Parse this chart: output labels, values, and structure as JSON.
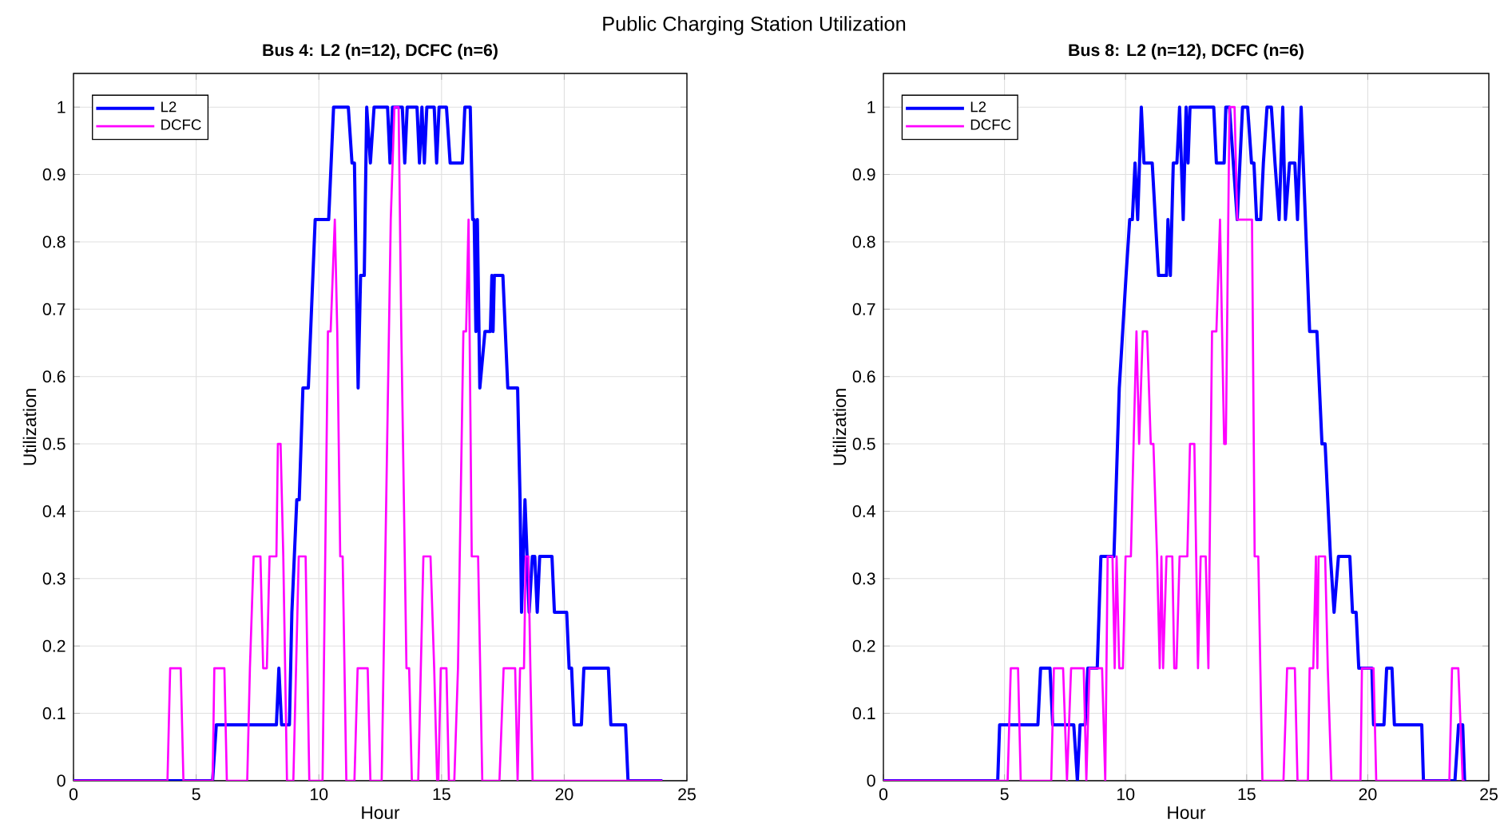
{
  "chart_data": [
    {
      "type": "line",
      "title": "Bus 4: L2 (n=12), DCFC (n=6)",
      "xlabel": "Hour",
      "ylabel": "Utilization",
      "annotations": [
        "Public Charging Station Utilization"
      ],
      "xlim": [
        0,
        25
      ],
      "ylim": [
        0,
        1.05
      ],
      "xticks": [
        0,
        5,
        10,
        15,
        20,
        25
      ],
      "yticks": [
        0,
        0.1,
        0.2,
        0.3,
        0.4,
        0.5,
        0.6,
        0.7,
        0.8,
        0.9,
        1
      ],
      "grid": true,
      "legend": "top left",
      "marker": "none",
      "line_style": "solid",
      "series": [
        {
          "name": "L2",
          "color": "#0000ff",
          "x": [
            0,
            5.67,
            5.82,
            8.27,
            8.37,
            8.48,
            8.8,
            8.9,
            9.0,
            9.1,
            9.2,
            9.35,
            9.57,
            9.85,
            10.4,
            10.6,
            11.2,
            11.35,
            11.45,
            11.6,
            11.7,
            11.85,
            11.95,
            12.1,
            12.25,
            12.3,
            12.8,
            12.9,
            13.0,
            13.4,
            13.5,
            13.6,
            14.0,
            14.1,
            14.2,
            14.3,
            14.4,
            14.7,
            14.8,
            14.9,
            15.2,
            15.35,
            15.85,
            15.95,
            16.17,
            16.27,
            16.33,
            16.4,
            16.46,
            16.56,
            16.77,
            16.99,
            17.05,
            17.1,
            17.15,
            17.2,
            17.5,
            17.7,
            18.1,
            18.2,
            18.26,
            18.4,
            18.57,
            18.7,
            18.8,
            18.9,
            19.0,
            19.5,
            19.6,
            20.1,
            20.2,
            20.3,
            20.4,
            20.7,
            20.8,
            21.8,
            21.9,
            22.5,
            22.6,
            24
          ],
          "values": [
            0,
            0,
            0.083,
            0.083,
            0.167,
            0.083,
            0.083,
            0.25,
            0.333,
            0.417,
            0.417,
            0.583,
            0.583,
            0.833,
            0.833,
            1,
            1,
            0.917,
            0.917,
            0.583,
            0.75,
            0.75,
            1,
            0.917,
            1,
            1,
            1,
            0.917,
            1,
            1,
            0.917,
            1,
            1,
            0.917,
            1,
            0.917,
            1,
            1,
            0.917,
            1,
            1,
            0.917,
            0.917,
            1,
            1,
            0.833,
            0.833,
            0.667,
            0.833,
            0.583,
            0.667,
            0.667,
            0.75,
            0.667,
            0.75,
            0.75,
            0.75,
            0.583,
            0.583,
            0.417,
            0.25,
            0.417,
            0.25,
            0.333,
            0.333,
            0.25,
            0.333,
            0.333,
            0.25,
            0.25,
            0.167,
            0.167,
            0.083,
            0.083,
            0.167,
            0.167,
            0.083,
            0.083,
            0,
            0
          ]
        },
        {
          "name": "DCFC",
          "color": "#ff00ff",
          "x": [
            0,
            3.83,
            3.94,
            4.37,
            4.48,
            5.67,
            5.74,
            6.15,
            6.25,
            7.08,
            7.19,
            7.34,
            7.62,
            7.73,
            7.88,
            7.99,
            8.27,
            8.33,
            8.44,
            8.55,
            8.7,
            8.96,
            9.18,
            9.46,
            9.61,
            10.15,
            10.37,
            10.48,
            10.65,
            10.75,
            10.87,
            10.97,
            11.12,
            11.45,
            11.58,
            11.99,
            12.1,
            12.56,
            12.93,
            13.08,
            13.25,
            13.36,
            13.57,
            13.68,
            13.79,
            14.05,
            14.26,
            14.55,
            14.7,
            14.82,
            14.87,
            14.97,
            15.2,
            15.3,
            15.52,
            15.67,
            15.89,
            16.0,
            16.1,
            16.23,
            16.49,
            16.66,
            17.36,
            17.53,
            18.0,
            18.1,
            18.2,
            18.36,
            18.43,
            18.54,
            18.62,
            18.71,
            24
          ],
          "values": [
            0,
            0,
            0.167,
            0.167,
            0,
            0,
            0.167,
            0.167,
            0,
            0,
            0.167,
            0.333,
            0.333,
            0.167,
            0.167,
            0.333,
            0.333,
            0.5,
            0.5,
            0.333,
            0,
            0,
            0.333,
            0.333,
            0,
            0,
            0.667,
            0.667,
            0.833,
            0.667,
            0.333,
            0.333,
            0,
            0,
            0.167,
            0.167,
            0,
            0,
            0.833,
            1,
            1,
            0.667,
            0.167,
            0.167,
            0,
            0,
            0.333,
            0.333,
            0.167,
            0,
            0,
            0.167,
            0.167,
            0,
            0,
            0.167,
            0.667,
            0.667,
            0.833,
            0.333,
            0.333,
            0,
            0,
            0.167,
            0.167,
            0,
            0.167,
            0.167,
            0.333,
            0.333,
            0.167,
            0,
            0
          ]
        }
      ]
    },
    {
      "type": "line",
      "title": "Bus 8: L2 (n=12), DCFC (n=6)",
      "xlabel": "Hour",
      "ylabel": "Utilization",
      "xlim": [
        0,
        25
      ],
      "ylim": [
        0,
        1.05
      ],
      "xticks": [
        0,
        5,
        10,
        15,
        20,
        25
      ],
      "yticks": [
        0,
        0.1,
        0.2,
        0.3,
        0.4,
        0.5,
        0.6,
        0.7,
        0.8,
        0.9,
        1
      ],
      "grid": true,
      "legend": "top left",
      "marker": "none",
      "line_style": "solid",
      "series": [
        {
          "name": "L2",
          "color": "#0000ff",
          "x": [
            0,
            4.72,
            4.8,
            6.38,
            6.49,
            6.88,
            6.99,
            7.86,
            8.01,
            8.12,
            8.33,
            8.44,
            8.83,
            8.98,
            9.52,
            9.74,
            10.02,
            10.17,
            10.28,
            10.39,
            10.5,
            10.65,
            10.76,
            11.1,
            11.36,
            11.69,
            11.75,
            11.85,
            11.97,
            12.12,
            12.23,
            12.38,
            12.5,
            12.58,
            12.66,
            13.64,
            13.75,
            14.07,
            14.14,
            14.29,
            14.61,
            14.83,
            15.04,
            15.2,
            15.3,
            15.41,
            15.58,
            15.69,
            15.84,
            16.02,
            16.17,
            16.34,
            16.49,
            16.6,
            16.77,
            16.99,
            17.1,
            17.25,
            17.6,
            17.9,
            18.11,
            18.24,
            18.46,
            18.61,
            18.79,
            19.26,
            19.37,
            19.52,
            19.63,
            20.17,
            20.24,
            20.67,
            20.78,
            21.0,
            21.1,
            22.23,
            22.3,
            23.6,
            23.75,
            23.92,
            24.0
          ],
          "values": [
            0,
            0,
            0.083,
            0.083,
            0.167,
            0.167,
            0.083,
            0.083,
            0,
            0.083,
            0.083,
            0.167,
            0.167,
            0.333,
            0.333,
            0.583,
            0.75,
            0.833,
            0.833,
            0.917,
            0.833,
            1,
            0.917,
            0.917,
            0.75,
            0.75,
            0.833,
            0.75,
            0.917,
            0.917,
            1,
            0.833,
            1,
            0.917,
            1,
            1,
            0.917,
            0.917,
            1,
            1,
            0.833,
            1,
            1,
            0.917,
            0.917,
            0.833,
            0.833,
            0.917,
            1,
            1,
            0.917,
            0.833,
            1,
            0.833,
            0.917,
            0.917,
            0.833,
            1,
            0.667,
            0.667,
            0.5,
            0.5,
            0.333,
            0.25,
            0.333,
            0.333,
            0.25,
            0.25,
            0.167,
            0.167,
            0.083,
            0.083,
            0.167,
            0.167,
            0.083,
            0.083,
            0,
            0,
            0.083,
            0.083,
            0
          ]
        },
        {
          "name": "DCFC",
          "color": "#ff00ff",
          "x": [
            0,
            5.13,
            5.26,
            5.56,
            5.67,
            6.93,
            7.04,
            7.42,
            7.58,
            7.75,
            8.27,
            8.38,
            8.51,
            9.03,
            9.16,
            9.26,
            9.46,
            9.55,
            9.63,
            9.74,
            9.89,
            10.0,
            10.22,
            10.33,
            10.45,
            10.56,
            10.71,
            10.89,
            11.04,
            11.15,
            11.3,
            11.41,
            11.48,
            11.55,
            11.69,
            11.93,
            12.01,
            12.1,
            12.23,
            12.55,
            12.66,
            12.84,
            12.99,
            13.1,
            13.31,
            13.42,
            13.57,
            13.75,
            13.9,
            14.07,
            14.14,
            14.29,
            14.5,
            14.61,
            15.22,
            15.33,
            15.48,
            15.65,
            16.52,
            16.67,
            16.99,
            17.1,
            17.53,
            17.6,
            17.75,
            17.86,
            17.92,
            17.97,
            18.24,
            18.35,
            18.5,
            19.7,
            19.76,
            20.24,
            20.35,
            23.37,
            23.48,
            23.74,
            23.92,
            24
          ],
          "values": [
            0,
            0,
            0.167,
            0.167,
            0,
            0,
            0.167,
            0.167,
            0,
            0.167,
            0.167,
            0,
            0.167,
            0.167,
            0,
            0.333,
            0.333,
            0.167,
            0.333,
            0.167,
            0.167,
            0.333,
            0.333,
            0.5,
            0.667,
            0.5,
            0.667,
            0.667,
            0.5,
            0.5,
            0.333,
            0.167,
            0.333,
            0.167,
            0.333,
            0.333,
            0.167,
            0.167,
            0.333,
            0.333,
            0.5,
            0.5,
            0.167,
            0.333,
            0.333,
            0.167,
            0.667,
            0.667,
            0.833,
            0.5,
            0.5,
            1,
            1,
            0.833,
            0.833,
            0.333,
            0.333,
            0,
            0,
            0.167,
            0.167,
            0,
            0,
            0.167,
            0.167,
            0.333,
            0.167,
            0.333,
            0.333,
            0.167,
            0,
            0,
            0.167,
            0.167,
            0,
            0,
            0.167,
            0.167,
            0,
            0
          ]
        }
      ]
    }
  ]
}
